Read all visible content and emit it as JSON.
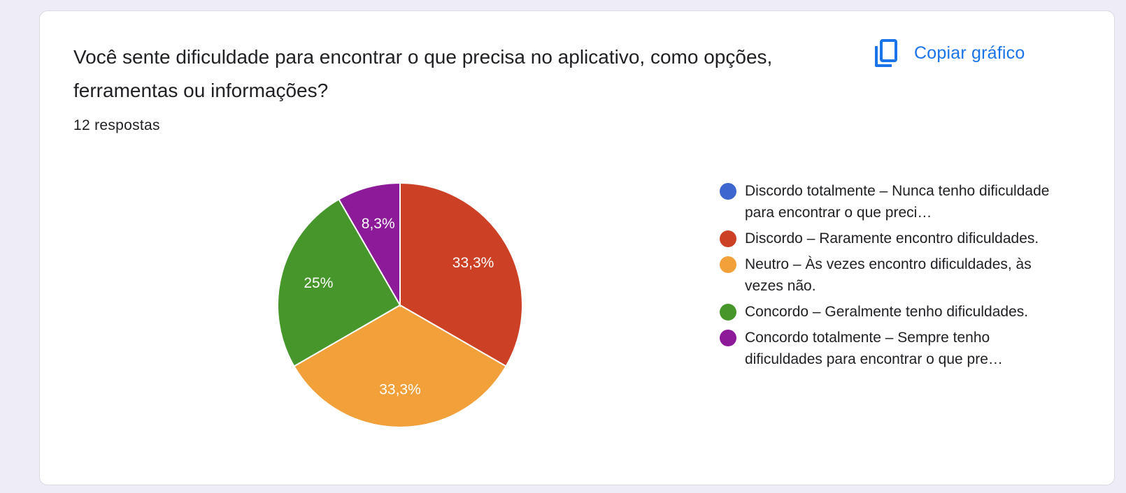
{
  "question": {
    "title": "Você sente dificuldade para encontrar o que precisa no aplicativo, como opções, ferramentas ou informações?",
    "responses": "12 respostas"
  },
  "actions": {
    "copy_label": "Copiar gráfico",
    "copy_icon": "copy-icon"
  },
  "chart_data": {
    "type": "pie",
    "total_responses": 12,
    "categories": [
      "Discordo totalmente – Nunca tenho dificuldade para encontrar o que preci…",
      "Discordo – Raramente encontro dificuldades.",
      "Neutro – Às vezes encontro dificuldades, às vezes não.",
      "Concordo – Geralmente tenho dificuldades.",
      "Concordo totalmente – Sempre tenho dificuldades para encontrar o que pre…"
    ],
    "values": [
      0,
      4,
      4,
      3,
      1
    ],
    "labels": [
      "",
      "33,3%",
      "33,3%",
      "25%",
      "8,3%"
    ],
    "colors": [
      "#3d67ce",
      "#cc4125",
      "#f1a03a",
      "#46962b",
      "#8c1a99"
    ],
    "start_angle_deg": 90,
    "direction": "clockwise",
    "legend_position": "right"
  }
}
